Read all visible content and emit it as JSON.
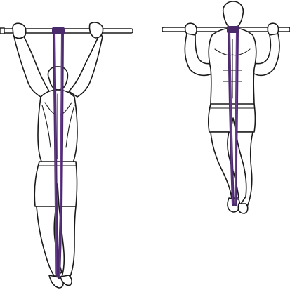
{
  "scene": {
    "background_color": "#ffffff",
    "line_color": "#1a1a1a",
    "bar_color": "#ffffff",
    "band_color": "#4b2a6b",
    "band_highlight_color": "#6a3f92",
    "skin_fill": "#ffffff"
  },
  "figures": [
    {
      "view": "back",
      "phase": "hanging"
    },
    {
      "view": "front",
      "phase": "pulled-up"
    }
  ]
}
